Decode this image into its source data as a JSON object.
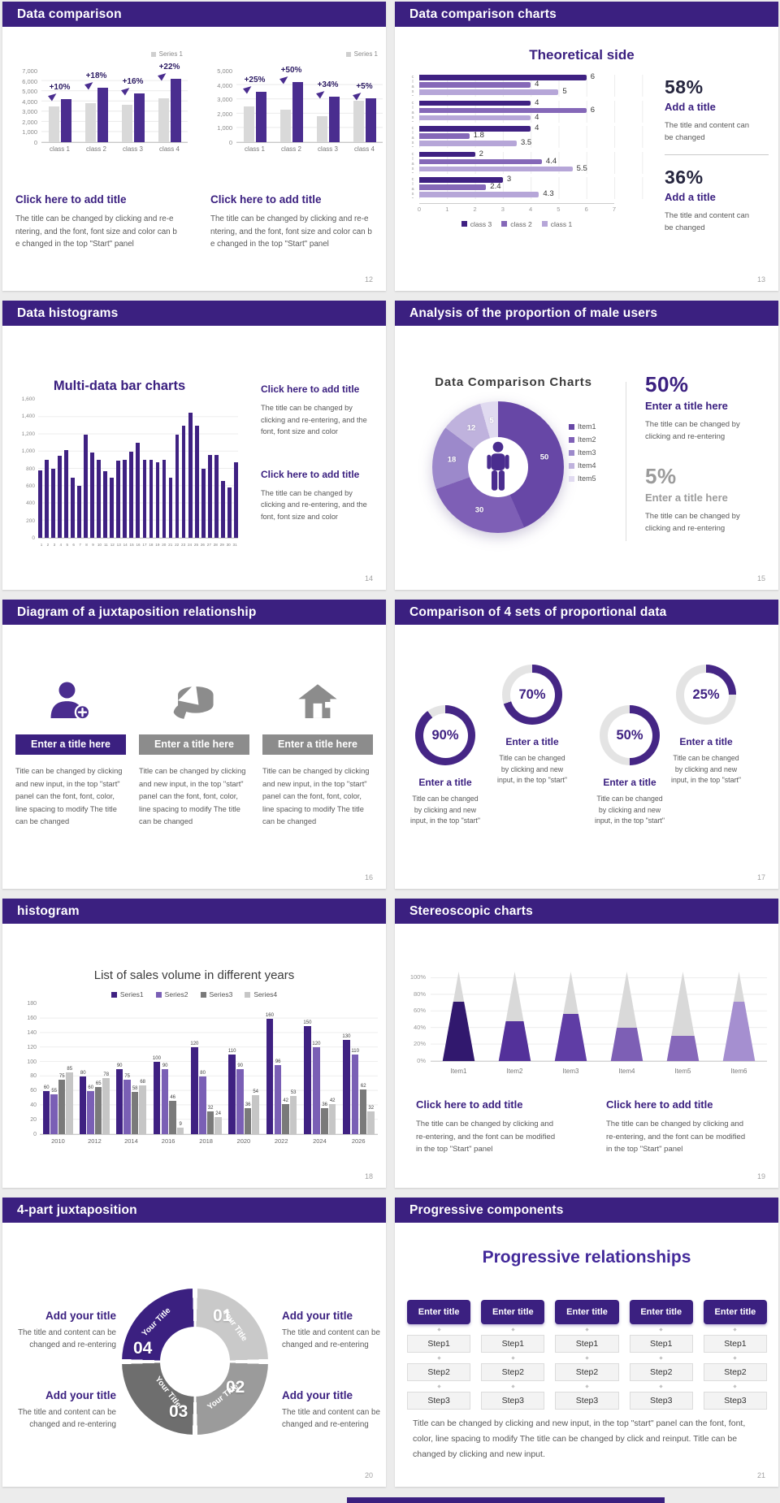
{
  "colors": {
    "accent": "#3b2080",
    "bar_purple": "#4a2d8f",
    "bar_gray": "#d9d9d9",
    "purple_mid": "#8568b8",
    "purple_light": "#b6a6d8",
    "body_text": "#595959",
    "page_bg": "#ececec"
  },
  "slides": [
    {
      "header": "Data comparison",
      "page": "12",
      "charts": [
        {
          "type": "pct-bar",
          "legend": "Series 1",
          "ymax": 7000,
          "yticks": [
            "7,000",
            "6,000",
            "5,000",
            "4,000",
            "3,000",
            "2,000",
            "1,000",
            "0"
          ],
          "categories": [
            "class 1",
            "class 2",
            "class 3",
            "class 4"
          ],
          "gray": [
            3500,
            3800,
            3700,
            4300
          ],
          "purple": [
            4200,
            5300,
            4800,
            6200
          ],
          "labels": [
            "+10%",
            "+18%",
            "+16%",
            "+22%"
          ]
        },
        {
          "type": "pct-bar",
          "legend": "Series 1",
          "ymax": 5000,
          "yticks": [
            "5,000",
            "4,000",
            "3,000",
            "2,000",
            "1,000",
            "0"
          ],
          "categories": [
            "class 1",
            "class 2",
            "class 3",
            "class 4"
          ],
          "gray": [
            2500,
            2300,
            1800,
            2900
          ],
          "purple": [
            3500,
            4200,
            3200,
            3050
          ],
          "labels": [
            "+25%",
            "+50%",
            "+34%",
            "+5%"
          ]
        }
      ],
      "blocks": [
        {
          "title": "Click here to add title",
          "body": "The title can be changed by clicking and re-e\nntering, and the font, font size and color can b\ne changed in the top \"Start\" panel"
        },
        {
          "title": "Click here to add title",
          "body": "The title can be changed by clicking and re-e\nntering, and the font, font size and color can b\ne changed in the top \"Start\" panel"
        }
      ]
    },
    {
      "header": "Data comparison charts",
      "page": "13",
      "chart_title": "Theoretical side",
      "chart": {
        "type": "hbar",
        "xmax": 7,
        "xticks": [
          "0",
          "1",
          "2",
          "3",
          "4",
          "5",
          "6",
          "7"
        ],
        "cat_label": "class…",
        "series_colors": [
          "#3f2182",
          "#8568b8",
          "#b6a6d8"
        ],
        "groups": [
          [
            6,
            4,
            5
          ],
          [
            4,
            6,
            4
          ],
          [
            4,
            1.8,
            3.5
          ],
          [
            2,
            4.4,
            5.5
          ],
          [
            3,
            2.4,
            4.3
          ]
        ],
        "legend": [
          "class 3",
          "class 2",
          "class 1"
        ]
      },
      "stats": [
        {
          "value": "58%",
          "title": "Add a title",
          "body": "The title and content can\nbe changed"
        },
        {
          "value": "36%",
          "title": "Add a title",
          "body": "The title and content can\nbe changed"
        }
      ]
    },
    {
      "header": "Data histograms",
      "page": "14",
      "chart_title": "Multi-data bar charts",
      "chart": {
        "type": "bars31",
        "ymax": 1600,
        "yticks": [
          "1,600",
          "1,400",
          "1,200",
          "1,000",
          "800",
          "600",
          "400",
          "200",
          "0"
        ],
        "color": "#3f2182",
        "x": [
          "1",
          "2",
          "3",
          "4",
          "5",
          "6",
          "7",
          "8",
          "9",
          "10",
          "11",
          "12",
          "13",
          "14",
          "15",
          "16",
          "17",
          "18",
          "19",
          "20",
          "21",
          "22",
          "23",
          "24",
          "25",
          "26",
          "27",
          "28",
          "29",
          "30",
          "31"
        ],
        "values": [
          780,
          900,
          800,
          950,
          1020,
          700,
          600,
          1200,
          990,
          900,
          770,
          700,
          890,
          900,
          1000,
          1100,
          900,
          900,
          880,
          900,
          700,
          1200,
          1300,
          1450,
          1300,
          800,
          960,
          960,
          660,
          580,
          880
        ]
      },
      "blocks": [
        {
          "title": "Click here to add title",
          "body": "The title can be changed by\nclicking and re-entering, and the\nfont, font size and color"
        },
        {
          "title": "Click here to add title",
          "body": "The title can be changed by\nclicking and re-entering, and the\nfont, font size and color"
        }
      ]
    },
    {
      "header": "Analysis of the proportion of male users",
      "page": "15",
      "chart_title": "Data Comparison Charts",
      "chart": {
        "type": "donut",
        "values": [
          50,
          30,
          18,
          12,
          5
        ],
        "labels": [
          "50",
          "30",
          "18",
          "12",
          "5"
        ],
        "colors": [
          "#6747a6",
          "#7e5fb6",
          "#9c89cb",
          "#bfb2dd",
          "#e0daf0"
        ],
        "legend": [
          "Item1",
          "Item2",
          "Item3",
          "Item4",
          "Item5"
        ]
      },
      "stats": [
        {
          "value": "50%",
          "title": "Enter a title here",
          "body": "The title can be changed by\nclicking and re-entering"
        },
        {
          "value": "5%",
          "title": "Enter a title here",
          "body": "The title can be changed by\nclicking and re-entering"
        }
      ]
    },
    {
      "header": "Diagram of a juxtaposition relationship",
      "page": "16",
      "items": [
        {
          "icon": "user-add-icon",
          "title": "Enter a title here",
          "body": "Title can be changed by clicking\nand new input, in the top \"start\"\npanel can the font, font, color,\nline spacing to modify The title\ncan be changed"
        },
        {
          "icon": "cake-icon",
          "title": "Enter a title here",
          "body": "Title can be changed by clicking\nand new input, in the top \"start\"\npanel can the font, font, color,\nline spacing to modify The title\ncan be changed"
        },
        {
          "icon": "building-icon",
          "title": "Enter a title here",
          "body": "Title can be changed by clicking\nand new input, in the top \"start\"\npanel can the font, font, color,\nline spacing to modify The title\ncan be changed"
        }
      ]
    },
    {
      "header": "Comparison of 4 sets of proportional data",
      "page": "17",
      "rings": {
        "type": "rings",
        "title": "Enter a title",
        "body": "Title can be changed\nby clicking and new\ninput, in the top \"start\"",
        "fill": "#452685",
        "track": "#e4e4e4",
        "items": [
          {
            "pct": 90,
            "raised": false
          },
          {
            "pct": 70,
            "raised": true
          },
          {
            "pct": 50,
            "raised": false
          },
          {
            "pct": 25,
            "raised": true
          }
        ]
      }
    },
    {
      "header": "histogram",
      "page": "18",
      "chart_title": "List of sales volume in different years",
      "chart": {
        "type": "multibar",
        "ymax": 180,
        "yticks": [
          "180",
          "160",
          "140",
          "120",
          "100",
          "80",
          "60",
          "40",
          "20",
          "0"
        ],
        "categories": [
          "2010",
          "2012",
          "2014",
          "2016",
          "2018",
          "2020",
          "2022",
          "2024",
          "2026"
        ],
        "legend": [
          "Series1",
          "Series2",
          "Series3",
          "Series4"
        ],
        "colors": [
          "#3f2182",
          "#7a5fb5",
          "#7a7a7a",
          "#c6c6c6"
        ],
        "series": [
          [
            60,
            80,
            90,
            100,
            120,
            110,
            160,
            150,
            130
          ],
          [
            55,
            60,
            75,
            90,
            80,
            90,
            96,
            120,
            110
          ],
          [
            75,
            65,
            58,
            46,
            32,
            36,
            42,
            36,
            62
          ],
          [
            85,
            78,
            68,
            9,
            24,
            54,
            53,
            42,
            32
          ]
        ]
      }
    },
    {
      "header": "Stereoscopic charts",
      "page": "19",
      "chart": {
        "type": "cones",
        "yticks": [
          "100%",
          "80%",
          "60%",
          "40%",
          "20%",
          "0%"
        ],
        "items": [
          "Item1",
          "Item2",
          "Item3",
          "Item4",
          "Item5",
          "Item6"
        ],
        "fills": [
          0.72,
          0.48,
          0.57,
          0.4,
          0.3,
          0.72
        ],
        "colors": [
          "#31186e",
          "#53319a",
          "#5f3da5",
          "#7d5fb5",
          "#8668ba",
          "#a58fd0"
        ],
        "gray": "#d9d9d9"
      },
      "blocks": [
        {
          "title": "Click here to add title",
          "body": "The title can be changed by clicking and\nre-entering, and the font can be modified\nin the top \"Start\" panel"
        },
        {
          "title": "Click here to add title",
          "body": "The title can be changed by clicking and\nre-entering, and the font can be modified\nin the top \"Start\" panel"
        }
      ]
    },
    {
      "header": "4-part juxtaposition",
      "page": "20",
      "ring": {
        "type": "quadring",
        "segments": [
          {
            "num": "01",
            "label": "Your Title",
            "color": "#c9c9c9"
          },
          {
            "num": "02",
            "label": "Your Title",
            "color": "#9b9b9b"
          },
          {
            "num": "03",
            "label": "Your Title",
            "color": "#6e6e6e"
          },
          {
            "num": "04",
            "label": "Your Title",
            "color": "#3b2080"
          }
        ]
      },
      "blocks": [
        {
          "title": "Add your title",
          "body": "The title and content can be\nchanged and re-entering"
        },
        {
          "title": "Add your title",
          "body": "The title and content can be\nchanged and re-entering"
        },
        {
          "title": "Add your title",
          "body": "The title and content can be\nchanged and re-entering"
        },
        {
          "title": "Add your title",
          "body": "The title and content can be\nchanged and re-entering"
        }
      ]
    },
    {
      "header": "Progressive components",
      "page": "21",
      "big_title": "Progressive relationships",
      "columns": {
        "type": "steps",
        "count": 5,
        "head": "Enter title",
        "steps": [
          "Step1",
          "Step2",
          "Step3"
        ]
      },
      "paragraph": "Title can be changed by clicking and new input, in the top \"start\" panel can the font, font,\ncolor, line spacing to modify The title can be changed by click and reinput. Title can be\nchanged by clicking and new input."
    }
  ]
}
